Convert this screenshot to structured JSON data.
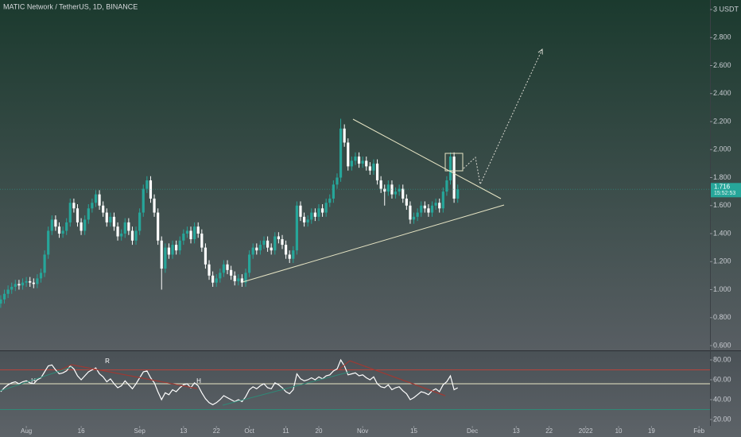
{
  "chart_data": {
    "type": "candlestick",
    "title": "MATIC Network / TetherUS, 1D, BINANCE",
    "up_color": "#26a69a",
    "down_color": "#ffffff",
    "x": [
      -7,
      -6,
      -5,
      -4,
      -3,
      -2,
      -1,
      0,
      1,
      2,
      3,
      4,
      5,
      6,
      7,
      8,
      9,
      10,
      11,
      12,
      13,
      14,
      15,
      16,
      17,
      18,
      19,
      20,
      21,
      22,
      23,
      24,
      25,
      26,
      27,
      28,
      29,
      30,
      31,
      32,
      33,
      34,
      35,
      36,
      37,
      38,
      39,
      40,
      41,
      42,
      43,
      44,
      45,
      46,
      47,
      48,
      49,
      50,
      51,
      52,
      53,
      54,
      55,
      56,
      57,
      58,
      59,
      60,
      61,
      62,
      63,
      64,
      65,
      66,
      67,
      68,
      69,
      70,
      71,
      72,
      73,
      74,
      75,
      76,
      77,
      78,
      79,
      80,
      81,
      82,
      83,
      84,
      85,
      86,
      87,
      88,
      89,
      90,
      91,
      92,
      93,
      94,
      95,
      96,
      97,
      98,
      99,
      100,
      101,
      102,
      103,
      104,
      105,
      106,
      107,
      108,
      109,
      110,
      111,
      112,
      113,
      114,
      115,
      116,
      117,
      118
    ],
    "open": [
      0.9,
      0.93,
      0.97,
      1.0,
      1.02,
      1.04,
      1.03,
      1.05,
      1.06,
      1.05,
      1.04,
      1.08,
      1.12,
      1.25,
      1.42,
      1.5,
      1.45,
      1.4,
      1.42,
      1.48,
      1.62,
      1.58,
      1.48,
      1.42,
      1.5,
      1.58,
      1.62,
      1.68,
      1.6,
      1.55,
      1.48,
      1.52,
      1.45,
      1.38,
      1.4,
      1.48,
      1.42,
      1.35,
      1.42,
      1.55,
      1.72,
      1.78,
      1.65,
      1.55,
      1.35,
      1.15,
      1.3,
      1.25,
      1.32,
      1.28,
      1.35,
      1.4,
      1.42,
      1.36,
      1.45,
      1.4,
      1.3,
      1.18,
      1.1,
      1.05,
      1.08,
      1.12,
      1.18,
      1.14,
      1.1,
      1.06,
      1.08,
      1.05,
      1.12,
      1.25,
      1.3,
      1.28,
      1.32,
      1.35,
      1.3,
      1.28,
      1.38,
      1.36,
      1.32,
      1.25,
      1.22,
      1.28,
      1.6,
      1.52,
      1.48,
      1.5,
      1.55,
      1.52,
      1.58,
      1.55,
      1.62,
      1.65,
      1.75,
      1.8,
      2.15,
      2.05,
      1.88,
      1.92,
      1.95,
      1.9,
      1.92,
      1.88,
      1.85,
      1.9,
      1.78,
      1.72,
      1.7,
      1.75,
      1.68,
      1.7,
      1.72,
      1.65,
      1.6,
      1.5,
      1.52,
      1.55,
      1.6,
      1.58,
      1.55,
      1.6,
      1.62,
      1.58,
      1.7,
      1.78,
      1.95,
      1.65
    ],
    "high": [
      0.96,
      1.0,
      1.03,
      1.05,
      1.07,
      1.07,
      1.08,
      1.09,
      1.09,
      1.08,
      1.11,
      1.15,
      1.28,
      1.45,
      1.53,
      1.53,
      1.48,
      1.45,
      1.51,
      1.65,
      1.65,
      1.61,
      1.51,
      1.53,
      1.61,
      1.65,
      1.71,
      1.71,
      1.63,
      1.58,
      1.55,
      1.55,
      1.48,
      1.43,
      1.51,
      1.51,
      1.45,
      1.45,
      1.58,
      1.75,
      1.81,
      1.81,
      1.68,
      1.58,
      1.38,
      1.33,
      1.33,
      1.35,
      1.35,
      1.38,
      1.43,
      1.45,
      1.45,
      1.48,
      1.48,
      1.43,
      1.33,
      1.21,
      1.13,
      1.11,
      1.15,
      1.21,
      1.21,
      1.17,
      1.13,
      1.11,
      1.11,
      1.15,
      1.28,
      1.33,
      1.33,
      1.35,
      1.38,
      1.38,
      1.33,
      1.41,
      1.41,
      1.39,
      1.35,
      1.28,
      1.31,
      1.63,
      1.63,
      1.55,
      1.53,
      1.58,
      1.58,
      1.61,
      1.61,
      1.65,
      1.68,
      1.78,
      1.83,
      2.22,
      2.18,
      2.08,
      1.95,
      1.98,
      1.98,
      1.95,
      1.95,
      1.91,
      1.93,
      1.93,
      1.81,
      1.75,
      1.78,
      1.78,
      1.73,
      1.75,
      1.75,
      1.68,
      1.63,
      1.55,
      1.58,
      1.63,
      1.63,
      1.61,
      1.63,
      1.65,
      1.65,
      1.73,
      1.81,
      1.98,
      1.98,
      1.75
    ],
    "low": [
      0.87,
      0.9,
      0.94,
      0.97,
      0.99,
      1.0,
      1.0,
      1.02,
      1.02,
      1.01,
      1.01,
      1.05,
      1.09,
      1.22,
      1.39,
      1.42,
      1.37,
      1.37,
      1.39,
      1.45,
      1.55,
      1.45,
      1.39,
      1.39,
      1.47,
      1.55,
      1.59,
      1.57,
      1.52,
      1.45,
      1.45,
      1.42,
      1.35,
      1.35,
      1.37,
      1.39,
      1.32,
      1.32,
      1.39,
      1.52,
      1.69,
      1.62,
      1.52,
      1.32,
      1.0,
      1.12,
      1.22,
      1.22,
      1.25,
      1.25,
      1.32,
      1.37,
      1.33,
      1.33,
      1.37,
      1.27,
      1.15,
      1.07,
      1.02,
      1.02,
      1.05,
      1.09,
      1.11,
      1.07,
      1.03,
      1.03,
      1.02,
      1.02,
      1.09,
      1.22,
      1.25,
      1.25,
      1.29,
      1.27,
      1.25,
      1.25,
      1.33,
      1.29,
      1.22,
      1.19,
      1.19,
      1.25,
      1.49,
      1.45,
      1.45,
      1.47,
      1.49,
      1.49,
      1.52,
      1.52,
      1.59,
      1.62,
      1.72,
      1.77,
      2.02,
      1.85,
      1.85,
      1.89,
      1.87,
      1.87,
      1.85,
      1.82,
      1.82,
      1.75,
      1.69,
      1.6,
      1.67,
      1.65,
      1.65,
      1.67,
      1.62,
      1.57,
      1.47,
      1.47,
      1.49,
      1.52,
      1.55,
      1.52,
      1.52,
      1.57,
      1.55,
      1.55,
      1.67,
      1.75,
      1.62,
      1.62
    ],
    "close": [
      0.93,
      0.97,
      1.0,
      1.02,
      1.04,
      1.03,
      1.05,
      1.06,
      1.05,
      1.04,
      1.08,
      1.12,
      1.25,
      1.42,
      1.5,
      1.45,
      1.4,
      1.42,
      1.48,
      1.62,
      1.58,
      1.48,
      1.42,
      1.5,
      1.58,
      1.62,
      1.68,
      1.6,
      1.55,
      1.48,
      1.52,
      1.45,
      1.38,
      1.4,
      1.48,
      1.42,
      1.35,
      1.42,
      1.55,
      1.72,
      1.78,
      1.65,
      1.55,
      1.35,
      1.15,
      1.3,
      1.25,
      1.32,
      1.28,
      1.35,
      1.4,
      1.42,
      1.36,
      1.45,
      1.4,
      1.3,
      1.18,
      1.1,
      1.05,
      1.08,
      1.12,
      1.18,
      1.14,
      1.1,
      1.06,
      1.08,
      1.05,
      1.12,
      1.25,
      1.3,
      1.28,
      1.32,
      1.35,
      1.3,
      1.28,
      1.38,
      1.36,
      1.32,
      1.25,
      1.22,
      1.28,
      1.6,
      1.52,
      1.48,
      1.5,
      1.55,
      1.52,
      1.58,
      1.55,
      1.62,
      1.65,
      1.75,
      1.8,
      2.15,
      2.05,
      1.88,
      1.92,
      1.95,
      1.9,
      1.92,
      1.88,
      1.85,
      1.9,
      1.78,
      1.72,
      1.7,
      1.75,
      1.68,
      1.7,
      1.72,
      1.65,
      1.6,
      1.5,
      1.52,
      1.55,
      1.6,
      1.58,
      1.55,
      1.6,
      1.62,
      1.58,
      1.7,
      1.78,
      1.95,
      1.65,
      1.716
    ],
    "last_price": {
      "value": 1.716,
      "label": "1.716",
      "countdown": "15:52:53"
    },
    "xlim": [
      -7.2,
      187
    ],
    "xticks": [
      {
        "value": 0,
        "label": "Aug"
      },
      {
        "value": 15,
        "label": "16"
      },
      {
        "value": 31,
        "label": "Sep"
      },
      {
        "value": 43,
        "label": "13"
      },
      {
        "value": 52,
        "label": "22"
      },
      {
        "value": 61,
        "label": "Oct"
      },
      {
        "value": 71,
        "label": "11"
      },
      {
        "value": 80,
        "label": "20"
      },
      {
        "value": 92,
        "label": "Nov"
      },
      {
        "value": 106,
        "label": "15"
      },
      {
        "value": 122,
        "label": "Dec"
      },
      {
        "value": 134,
        "label": "13"
      },
      {
        "value": 143,
        "label": "22"
      },
      {
        "value": 153,
        "label": "2022"
      },
      {
        "value": 162,
        "label": "10"
      },
      {
        "value": 171,
        "label": "19"
      },
      {
        "value": 184,
        "label": "Feb"
      }
    ],
    "ylim": [
      0.566,
      3.068
    ],
    "yticks": [
      {
        "value": 3,
        "label": "3 USDT"
      },
      {
        "value": 2.8,
        "label": "2.800"
      },
      {
        "value": 2.6,
        "label": "2.600"
      },
      {
        "value": 2.4,
        "label": "2.400"
      },
      {
        "value": 2.2,
        "label": "2.200"
      },
      {
        "value": 2,
        "label": "2.000"
      },
      {
        "value": 1.8,
        "label": "1.800"
      },
      {
        "value": 1.6,
        "label": "1.600"
      },
      {
        "value": 1.4,
        "label": "1.400"
      },
      {
        "value": 1.2,
        "label": "1.200"
      },
      {
        "value": 1,
        "label": "1.000"
      },
      {
        "value": 0.8,
        "label": "0.800"
      },
      {
        "value": 0.6,
        "label": "0.600"
      }
    ],
    "grid": false,
    "rsi": {
      "color": "#ffffff",
      "values": [
        48,
        52,
        55,
        57,
        58,
        56,
        58,
        59,
        57,
        56,
        60,
        62,
        68,
        74,
        75,
        70,
        66,
        67,
        69,
        74,
        71,
        64,
        60,
        64,
        68,
        70,
        72,
        66,
        63,
        58,
        61,
        56,
        52,
        54,
        59,
        55,
        51,
        56,
        62,
        68,
        69,
        62,
        57,
        48,
        40,
        47,
        45,
        50,
        48,
        52,
        55,
        56,
        52,
        57,
        54,
        47,
        41,
        37,
        35,
        37,
        40,
        44,
        42,
        40,
        38,
        40,
        38,
        43,
        50,
        53,
        51,
        54,
        56,
        52,
        51,
        57,
        55,
        52,
        48,
        46,
        50,
        66,
        61,
        59,
        60,
        62,
        60,
        63,
        61,
        64,
        65,
        69,
        71,
        80,
        74,
        65,
        66,
        67,
        64,
        65,
        62,
        60,
        63,
        56,
        53,
        52,
        55,
        50,
        52,
        53,
        49,
        46,
        40,
        42,
        45,
        48,
        47,
        45,
        49,
        51,
        48,
        55,
        58,
        64,
        50,
        52
      ],
      "ylim": [
        13.6,
        88.8
      ],
      "yticks": [
        {
          "value": 80,
          "label": "80.00"
        },
        {
          "value": 60,
          "label": "60.00"
        },
        {
          "value": 40,
          "label": "40.00"
        },
        {
          "value": 20,
          "label": "20.00"
        }
      ],
      "levels": [
        {
          "value": 70,
          "color": "#b8433c"
        },
        {
          "value": 56,
          "color": "#e9e7c6"
        },
        {
          "value": 30,
          "color": "#2f8a78"
        }
      ],
      "labels": [
        "H",
        "R",
        "H"
      ]
    }
  }
}
